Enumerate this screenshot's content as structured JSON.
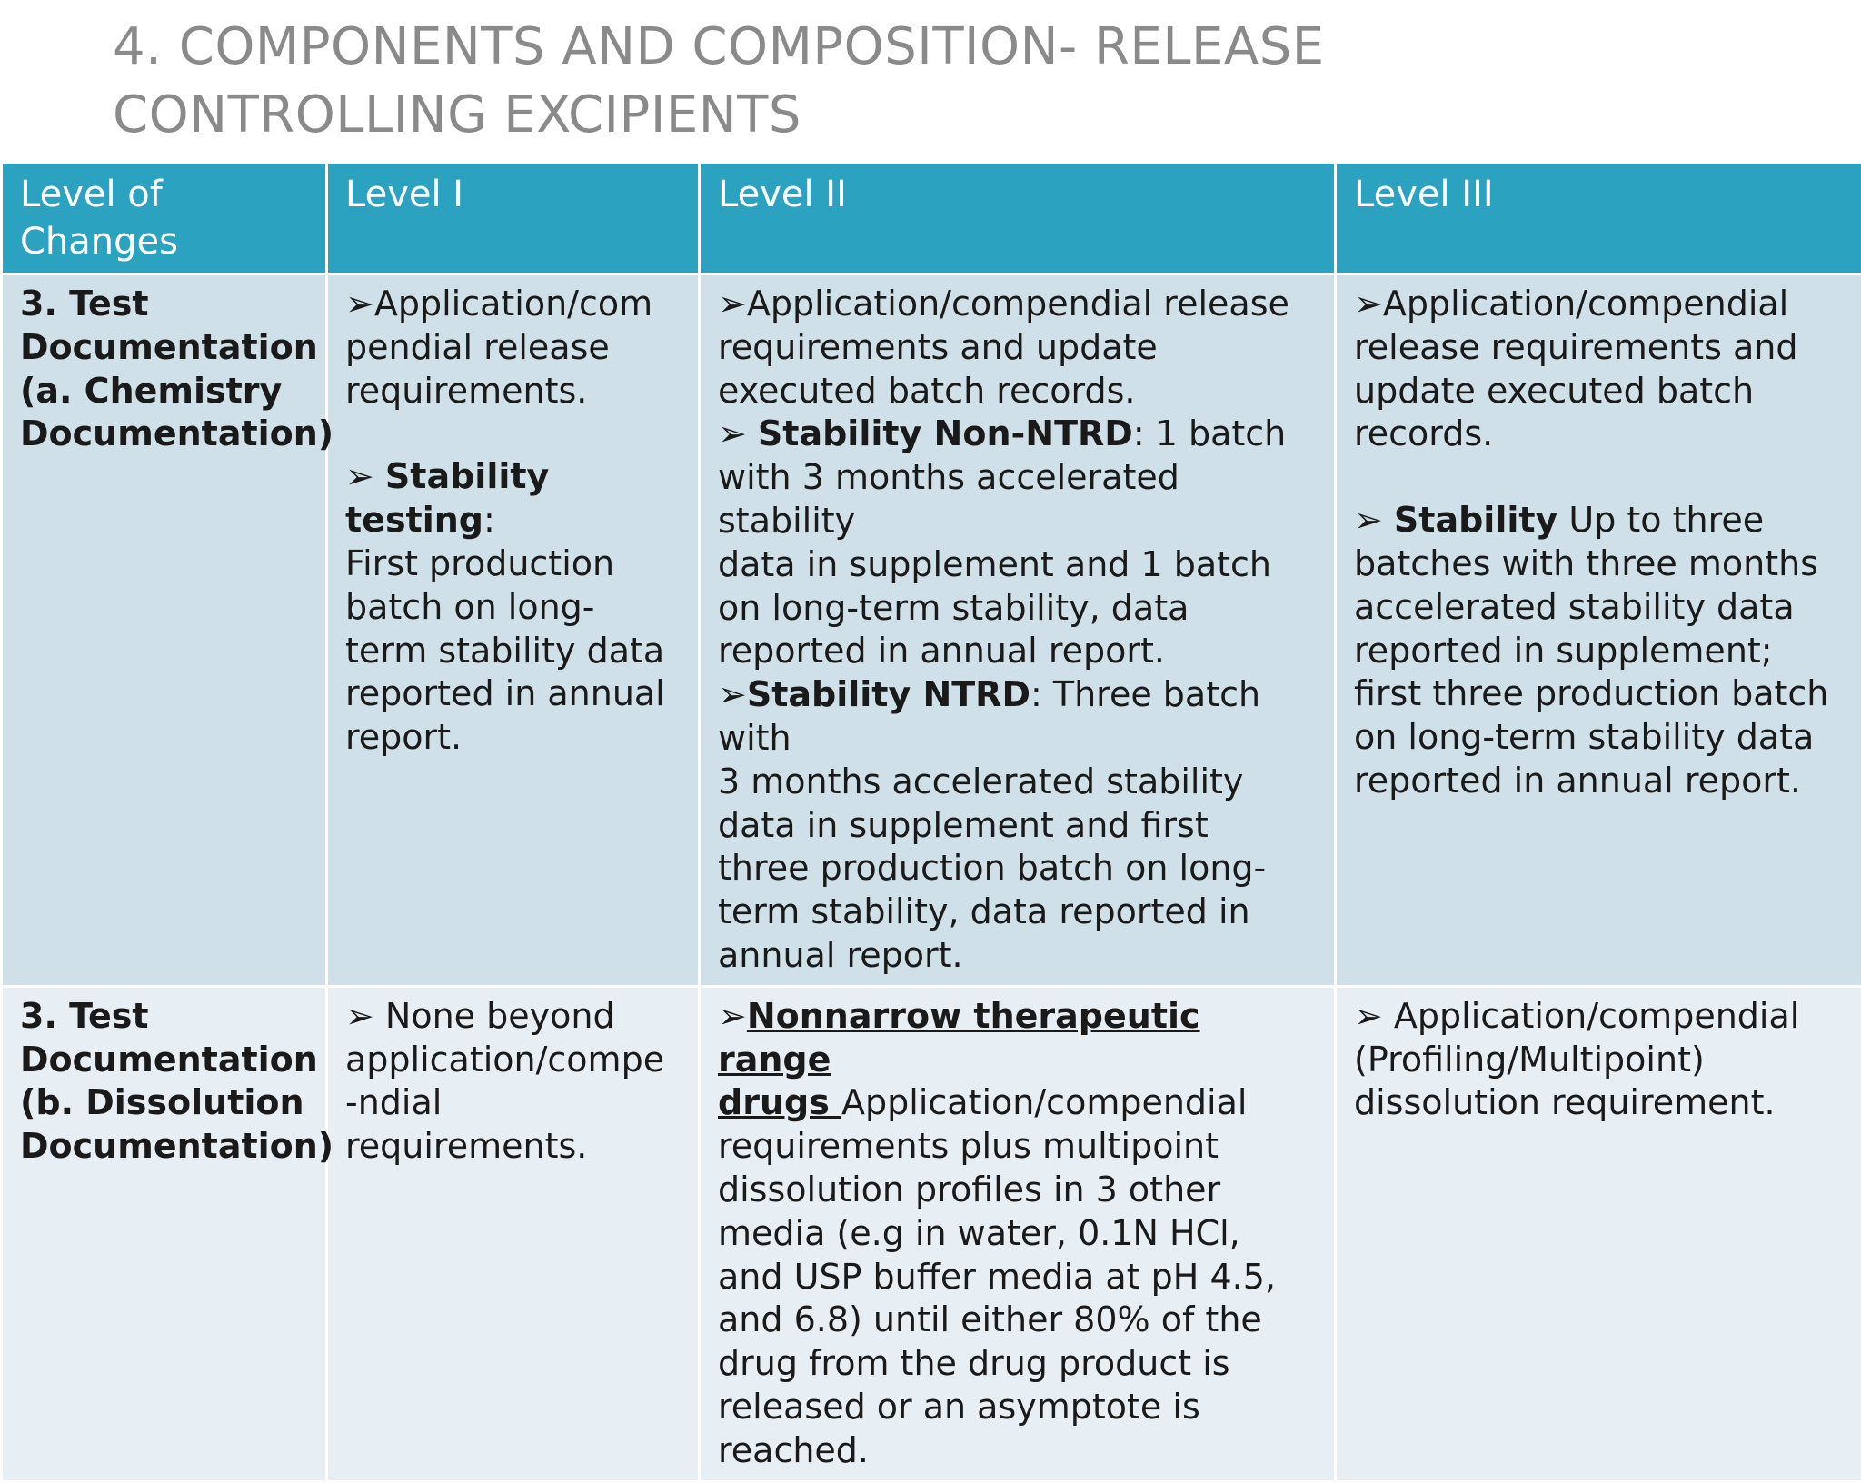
{
  "slide": {
    "title_line1": "4. COMPONENTS AND COMPOSITION- RELEASE",
    "title_line2": "CONTROLLING EXCIPIENTS"
  },
  "table": {
    "headers": {
      "col1_line1": "Level of",
      "col1_line2": "Changes",
      "col2": "Level I",
      "col3": "Level II",
      "col4": "Level III"
    },
    "rows": [
      {
        "label_lines": [
          "3. Test",
          "Documentation",
          "(a. Chemistry",
          "Documentation)"
        ],
        "level1": {
          "b1_lines": [
            "➢Application/com",
            "pendial release",
            "requirements."
          ],
          "b2_marker": "➢ ",
          "b2_term": "Stability testing",
          "b2_after": ":",
          "b2_lines": [
            "First production",
            "batch on long-",
            "term stability data",
            "reported in annual",
            "report."
          ]
        },
        "level2": {
          "b1_lines": [
            "➢Application/compendial release",
            "requirements and update",
            "executed batch records."
          ],
          "b2_marker": "➢ ",
          "b2_term": "Stability Non-NTRD",
          "b2_after": ": 1 batch",
          "b2_lines": [
            "with 3 months accelerated",
            "stability",
            "data in supplement and 1 batch",
            "on long-term stability, data",
            "reported in annual report."
          ],
          "b3_marker": "➢",
          "b3_term": "Stability NTRD",
          "b3_after": ": Three batch with",
          "b3_lines": [
            "3 months accelerated stability",
            "data in supplement and first",
            "three production batch on long-",
            "term stability, data reported in",
            "annual report."
          ]
        },
        "level3": {
          "b1_lines": [
            "➢Application/compendial",
            "release requirements and",
            "update executed batch",
            "records."
          ],
          "b2_marker": "➢ ",
          "b2_term": "Stability",
          "b2_after": " Up to three",
          "b2_lines": [
            "batches with three months",
            "accelerated stability data",
            "reported in supplement;",
            "first three production batch",
            "on long-term stability data",
            "reported in annual report."
          ]
        }
      },
      {
        "label_lines": [
          "3. Test",
          "Documentation",
          "(b. Dissolution",
          "Documentation)"
        ],
        "level1": {
          "b1_lines": [
            "➢ None beyond",
            "application/compe",
            "-ndial",
            "requirements."
          ]
        },
        "level2": {
          "b1_marker": "➢",
          "b1_term_line1": "Nonnarrow therapeutic range",
          "b1_term_line2": "drugs ",
          "b1_after": "Application/compendial",
          "b1_lines": [
            "requirements plus multipoint",
            "dissolution profiles in 3 other",
            "media (e.g in water, 0.1N HCl,",
            "and USP buffer media at pH 4.5,",
            "and 6.8) until either 80% of the",
            "drug from the drug product is",
            "released or an asymptote is",
            "reached."
          ]
        },
        "level3": {
          "b1_lines": [
            "➢ Application/compendial",
            "(Profiling/Multipoint)",
            "dissolution requirement."
          ]
        }
      }
    ]
  }
}
